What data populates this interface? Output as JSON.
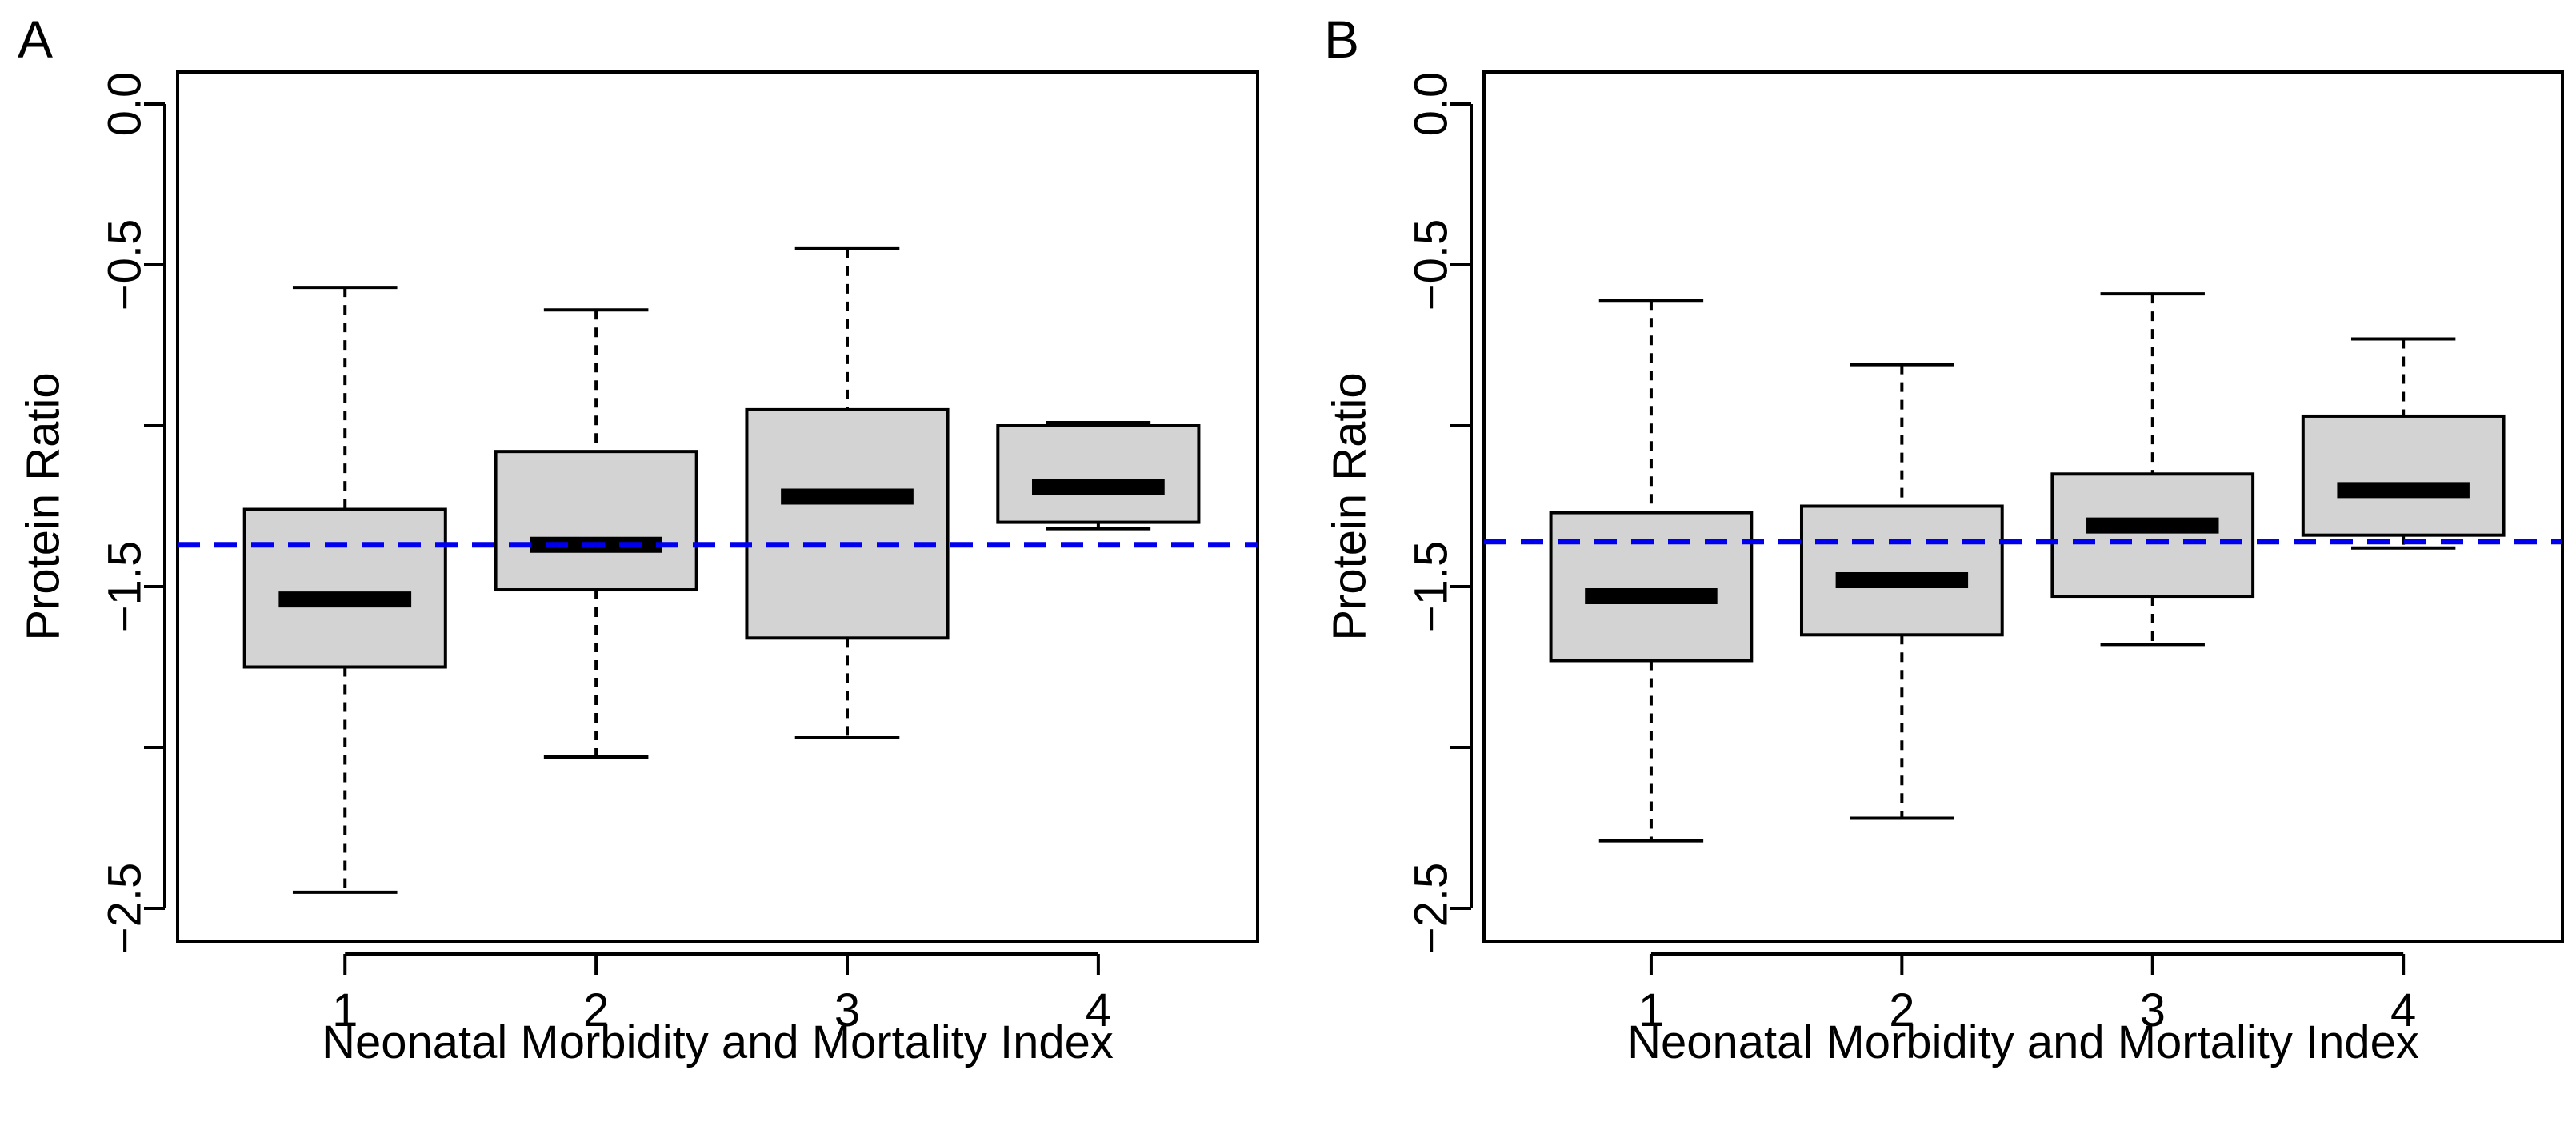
{
  "chart_data": [
    {
      "type": "boxplot",
      "panel_label": "A",
      "xlabel": "Neonatal Morbidity and Mortality Index",
      "ylabel": "Protein Ratio",
      "categories": [
        "1",
        "2",
        "3",
        "4"
      ],
      "yticks": [
        0.0,
        -0.5,
        -1.0,
        -1.5,
        -2.0,
        -2.5
      ],
      "ytick_labels": [
        "0.0",
        "−0.5",
        "",
        "−1.5",
        "",
        "−2.5"
      ],
      "ylim": [
        -2.6,
        0.1
      ],
      "reference_line": -1.37,
      "reference_color": "#0000ee",
      "box_color": "#d3d3d3",
      "boxes": [
        {
          "category": "1",
          "whisker_low": -2.45,
          "q1": -1.75,
          "median": -1.54,
          "q3": -1.26,
          "whisker_high": -0.57
        },
        {
          "category": "2",
          "whisker_low": -2.03,
          "q1": -1.51,
          "median": -1.37,
          "q3": -1.08,
          "whisker_high": -0.64
        },
        {
          "category": "3",
          "whisker_low": -1.97,
          "q1": -1.66,
          "median": -1.22,
          "q3": -0.95,
          "whisker_high": -0.45
        },
        {
          "category": "4",
          "whisker_low": -1.32,
          "q1": -1.3,
          "median": -1.19,
          "q3": -1.0,
          "whisker_high": -0.99
        }
      ]
    },
    {
      "type": "boxplot",
      "panel_label": "B",
      "xlabel": "Neonatal Morbidity and Mortality Index",
      "ylabel": "Protein Ratio",
      "categories": [
        "1",
        "2",
        "3",
        "4"
      ],
      "yticks": [
        0.0,
        -0.5,
        -1.0,
        -1.5,
        -2.0,
        -2.5
      ],
      "ytick_labels": [
        "0.0",
        "−0.5",
        "",
        "−1.5",
        "",
        "−2.5"
      ],
      "ylim": [
        -2.6,
        0.1
      ],
      "reference_line": -1.36,
      "reference_color": "#0000ee",
      "box_color": "#d3d3d3",
      "boxes": [
        {
          "category": "1",
          "whisker_low": -2.29,
          "q1": -1.73,
          "median": -1.53,
          "q3": -1.27,
          "whisker_high": -0.61
        },
        {
          "category": "2",
          "whisker_low": -2.22,
          "q1": -1.65,
          "median": -1.48,
          "q3": -1.25,
          "whisker_high": -0.81
        },
        {
          "category": "3",
          "whisker_low": -1.68,
          "q1": -1.53,
          "median": -1.31,
          "q3": -1.15,
          "whisker_high": -0.59
        },
        {
          "category": "4",
          "whisker_low": -1.38,
          "q1": -1.34,
          "median": -1.2,
          "q3": -0.97,
          "whisker_high": -0.73
        }
      ]
    }
  ]
}
